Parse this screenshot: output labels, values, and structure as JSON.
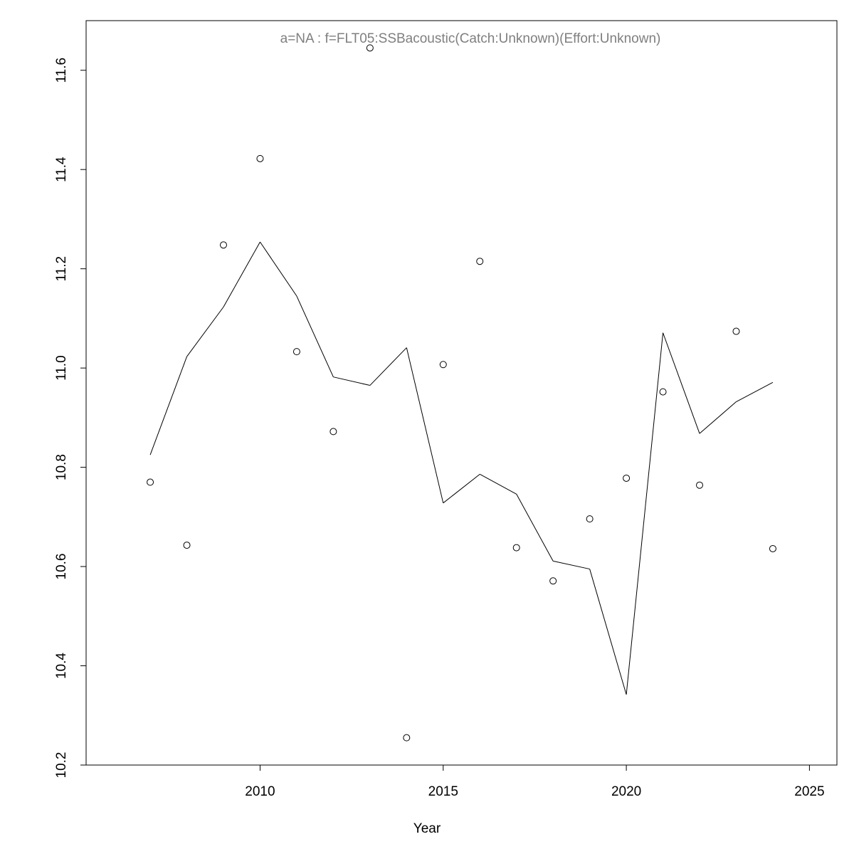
{
  "chart_data": {
    "type": "line",
    "title": "a=NA  :  f=FLT05:SSBacoustic(Catch:Unknown)(Effort:Unknown)",
    "xlabel": "Year",
    "ylabel": "",
    "xlim": [
      2005.25,
      2025.75
    ],
    "ylim": [
      10.2,
      11.7
    ],
    "x_ticks": [
      "2010",
      "2015",
      "2020",
      "2025"
    ],
    "y_ticks": [
      "10.2",
      "10.4",
      "10.6",
      "10.8",
      "11.0",
      "11.2",
      "11.4",
      "11.6"
    ],
    "x": [
      2007,
      2008,
      2009,
      2010,
      2011,
      2012,
      2013,
      2014,
      2015,
      2016,
      2017,
      2018,
      2019,
      2020,
      2021,
      2022,
      2023,
      2024
    ],
    "series": [
      {
        "type": "scatter",
        "marker": "open-circle",
        "values": [
          10.77,
          10.643,
          11.248,
          11.422,
          11.033,
          10.872,
          11.645,
          10.255,
          11.007,
          11.215,
          10.638,
          10.571,
          10.696,
          10.778,
          10.952,
          10.764,
          11.074,
          10.636
        ]
      },
      {
        "type": "line",
        "values": [
          10.825,
          11.023,
          11.123,
          11.254,
          11.145,
          10.982,
          10.965,
          11.041,
          10.728,
          10.786,
          10.746,
          10.611,
          10.595,
          10.342,
          11.071,
          10.868,
          10.932,
          10.971
        ]
      }
    ],
    "colors": {
      "points": "#000000",
      "line": "#000000",
      "title": "#7f7f7f"
    },
    "grid": false,
    "legend": "none"
  }
}
